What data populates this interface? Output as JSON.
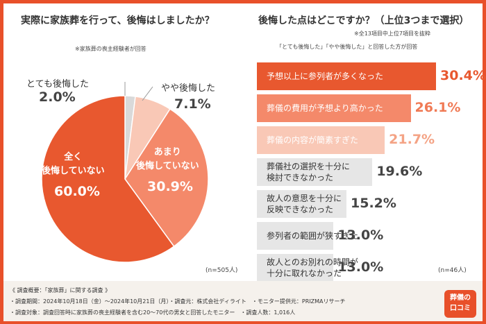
{
  "left": {
    "title": "実際に家族葬を行って、後悔はしましたか？",
    "note": "※家族葬の喪主経験者が回答",
    "sample": "(n=505人)"
  },
  "chart_data": [
    {
      "type": "pie",
      "slices": [
        {
          "label": "とても後悔した",
          "value": 2.0,
          "display": "2.0%",
          "color": "#d9d9d9"
        },
        {
          "label": "やや後悔した",
          "value": 7.1,
          "display": "7.1%",
          "color": "#f9c8b6"
        },
        {
          "label": "あまり後悔していない",
          "line1": "あまり",
          "line2": "後悔していない",
          "value": 30.9,
          "display": "30.9%",
          "color": "#f4896a"
        },
        {
          "label": "全く後悔していない",
          "line1": "全く",
          "line2": "後悔していない",
          "value": 60.0,
          "display": "60.0%",
          "color": "#e8582f"
        }
      ]
    },
    {
      "type": "bar",
      "title": "後悔した点はどこですか？（上位3つまで選択）",
      "note1": "※全13項目中上位7項目を抜粋",
      "note2": "「とても後悔した」「やや後悔した」と回答した方が回答",
      "sample": "(n=46人)",
      "xlim": [
        0,
        30.4
      ],
      "bars": [
        {
          "line1": "予想以上に参列者が多くなった",
          "line2": "",
          "value": 30.4,
          "display": "30.4%",
          "color": "#e8582f",
          "text_color": "#ffffff",
          "value_color": "#e8582f"
        },
        {
          "line1": "葬儀の費用が予想より高かった",
          "line2": "",
          "value": 26.1,
          "display": "26.1%",
          "color": "#f4896a",
          "text_color": "#ffffff",
          "value_color": "#f07a55"
        },
        {
          "line1": "葬儀の内容が簡素すぎた",
          "line2": "",
          "value": 21.7,
          "display": "21.7%",
          "color": "#f9c8b6",
          "text_color": "#ffffff",
          "value_color": "#f4a385"
        },
        {
          "line1": "葬儀社の選択を十分に",
          "line2": "検討できなかった",
          "value": 19.6,
          "display": "19.6%",
          "color": "#e6e6e6",
          "text_color": "#333333",
          "value_color": "#444444"
        },
        {
          "line1": "故人の意思を十分に",
          "line2": "反映できなかった",
          "value": 15.2,
          "display": "15.2%",
          "color": "#e6e6e6",
          "text_color": "#333333",
          "value_color": "#444444"
        },
        {
          "line1": "参列者の範囲が狭すぎた",
          "line2": "",
          "value": 13.0,
          "display": "13.0%",
          "color": "#e6e6e6",
          "text_color": "#333333",
          "value_color": "#444444"
        },
        {
          "line1": "故人とのお別れの時間が",
          "line2": "十分に取れなかった",
          "value": 13.0,
          "display": "13.0%",
          "color": "#e6e6e6",
          "text_color": "#333333",
          "value_color": "#444444"
        }
      ]
    }
  ],
  "footer": {
    "heading": "《 調査概要：「家族葬」に関する調査 》",
    "line1": "・調査期間：2024年10月18日（金）〜2024年10月21日（月）・調査元：株式会社ディライト　・モニター提供元：PRIZMAリサーチ",
    "line2": "・調査対象：調査回答時に家族葬の喪主経験者を含む20〜70代の男女と回答したモニター　・調査人数：1,016人"
  },
  "badge": {
    "line1": "葬儀の",
    "line2": "口コミ"
  }
}
